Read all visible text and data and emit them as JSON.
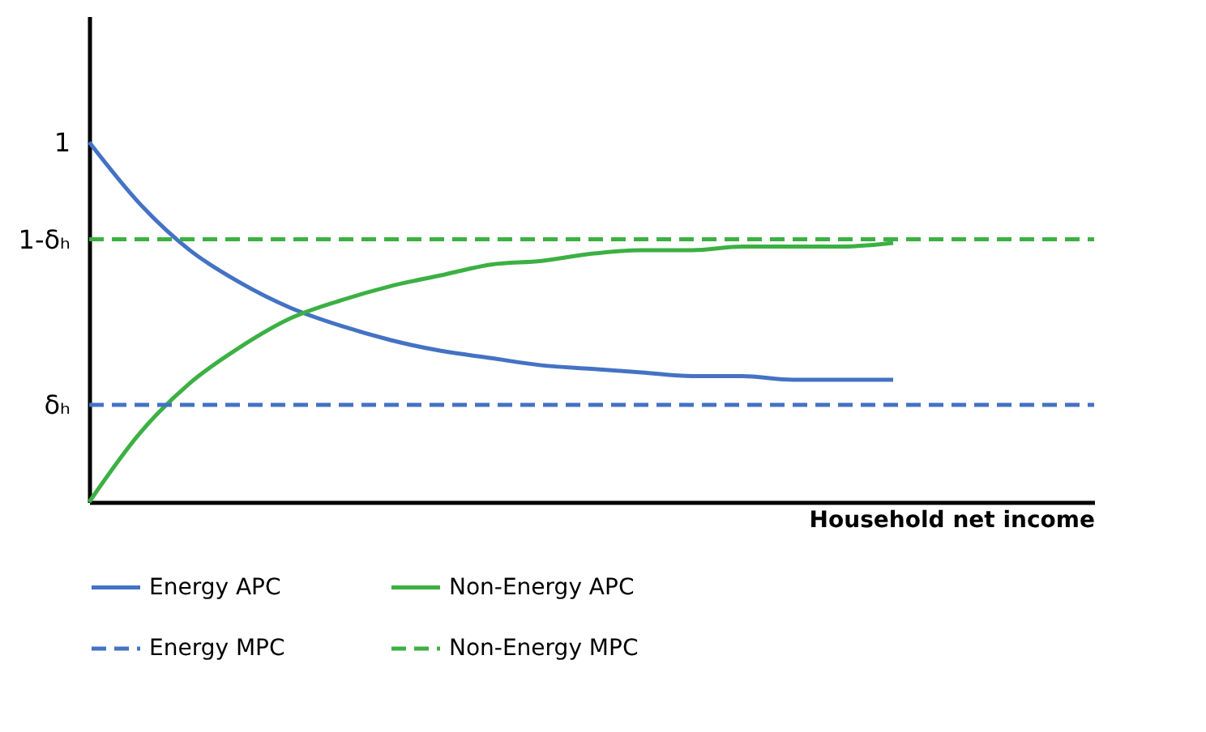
{
  "chart_data": {
    "type": "line",
    "xlabel": "Household net income",
    "categories": [
      null,
      null,
      null,
      null,
      null,
      null,
      null,
      null,
      null,
      null,
      null,
      null,
      null,
      null,
      null,
      null,
      null,
      null,
      null,
      null,
      null
    ],
    "series": [
      {
        "name": "Energy APC",
        "color": "#4472c4",
        "line_style": "solid",
        "values": [
          1.0,
          0.83,
          0.7,
          0.61,
          0.54,
          0.49,
          0.45,
          0.42,
          0.4,
          0.38,
          0.37,
          0.36,
          0.35,
          0.35,
          0.34,
          0.34,
          0.34,
          null,
          null,
          null,
          null
        ]
      },
      {
        "name": "Non-Energy APC",
        "color": "#3cb043",
        "line_style": "solid",
        "values": [
          0,
          0.19,
          0.33,
          0.43,
          0.51,
          0.56,
          0.6,
          0.63,
          0.66,
          0.67,
          0.69,
          0.7,
          0.7,
          0.71,
          0.71,
          0.71,
          0.72,
          null,
          null,
          null,
          null
        ]
      },
      {
        "name": "Energy MPC",
        "color": "#4472c4",
        "line_style": "dashed",
        "values": [
          0.27,
          0.27,
          0.27,
          0.27,
          0.27,
          0.27,
          0.27,
          0.27,
          0.27,
          0.27,
          0.27,
          0.27,
          0.27,
          0.27,
          0.27,
          0.27,
          0.27,
          0.27,
          0.27,
          0.27,
          0.27
        ]
      },
      {
        "name": "Non-Energy MPC",
        "color": "#3cb043",
        "line_style": "dashed",
        "values": [
          0.73,
          0.73,
          0.73,
          0.73,
          0.73,
          0.73,
          0.73,
          0.73,
          0.73,
          0.73,
          0.73,
          0.73,
          0.73,
          0.73,
          0.73,
          0.73,
          0.73,
          0.73,
          0.73,
          0.73,
          0.73
        ]
      }
    ],
    "ylim": [
      0,
      1.35
    ],
    "yticks": [
      1,
      {
        "value": 0.73,
        "label": "1-δₕ"
      },
      {
        "value": 0.27,
        "label": "δₕ"
      }
    ],
    "tick_labels": "y",
    "grid": false,
    "legend": "bottom",
    "marker": "none"
  }
}
